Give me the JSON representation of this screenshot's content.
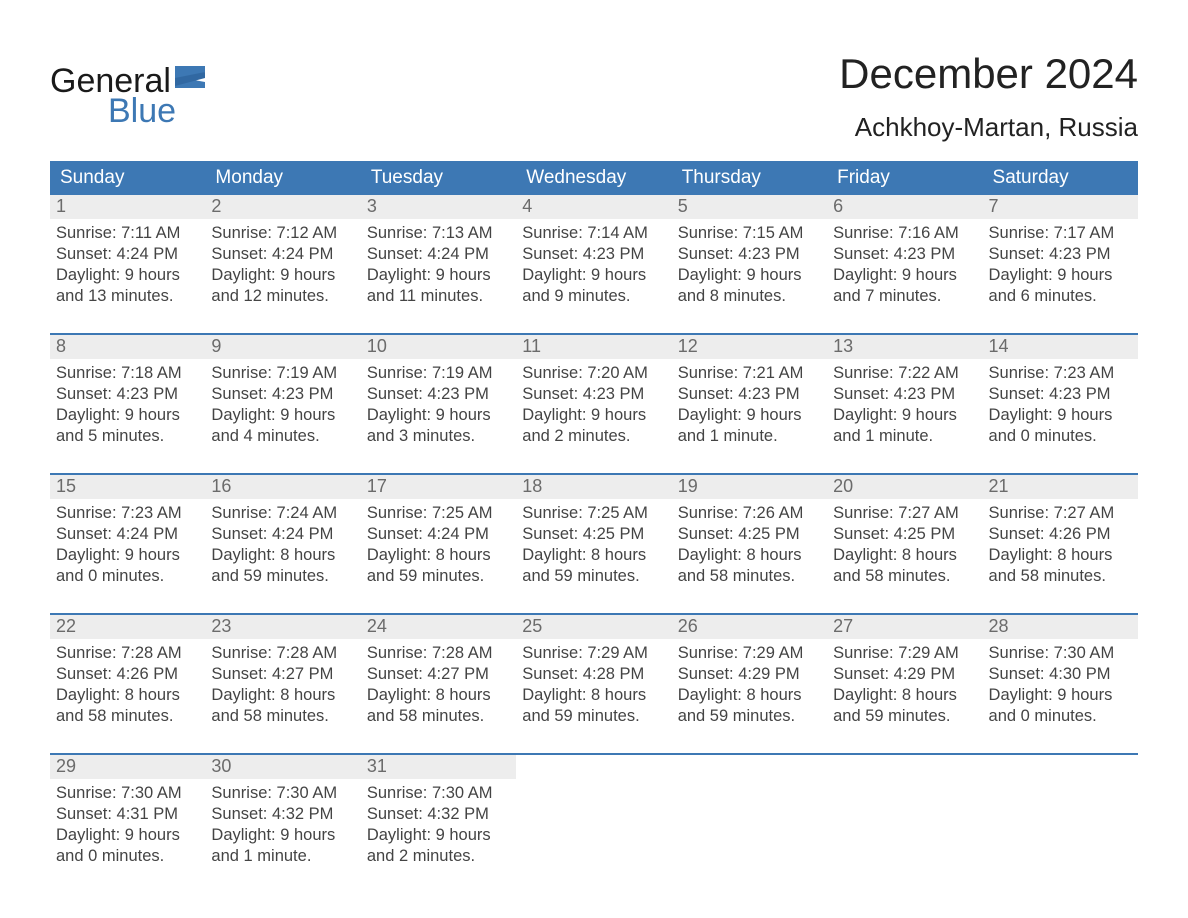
{
  "logo": {
    "line1": "General",
    "line2": "Blue"
  },
  "title": "December 2024",
  "location": "Achkhoy-Martan, Russia",
  "colors": {
    "header_blue": "#3d78b4",
    "daynum_bg": "#ededed",
    "logo_blue": "#3d78b4",
    "text": "#333333",
    "background": "#ffffff"
  },
  "daysOfWeek": [
    "Sunday",
    "Monday",
    "Tuesday",
    "Wednesday",
    "Thursday",
    "Friday",
    "Saturday"
  ],
  "weeks": [
    [
      {
        "n": "1",
        "sunrise": "Sunrise: 7:11 AM",
        "sunset": "Sunset: 4:24 PM",
        "day1": "Daylight: 9 hours",
        "day2": "and 13 minutes."
      },
      {
        "n": "2",
        "sunrise": "Sunrise: 7:12 AM",
        "sunset": "Sunset: 4:24 PM",
        "day1": "Daylight: 9 hours",
        "day2": "and 12 minutes."
      },
      {
        "n": "3",
        "sunrise": "Sunrise: 7:13 AM",
        "sunset": "Sunset: 4:24 PM",
        "day1": "Daylight: 9 hours",
        "day2": "and 11 minutes."
      },
      {
        "n": "4",
        "sunrise": "Sunrise: 7:14 AM",
        "sunset": "Sunset: 4:23 PM",
        "day1": "Daylight: 9 hours",
        "day2": "and 9 minutes."
      },
      {
        "n": "5",
        "sunrise": "Sunrise: 7:15 AM",
        "sunset": "Sunset: 4:23 PM",
        "day1": "Daylight: 9 hours",
        "day2": "and 8 minutes."
      },
      {
        "n": "6",
        "sunrise": "Sunrise: 7:16 AM",
        "sunset": "Sunset: 4:23 PM",
        "day1": "Daylight: 9 hours",
        "day2": "and 7 minutes."
      },
      {
        "n": "7",
        "sunrise": "Sunrise: 7:17 AM",
        "sunset": "Sunset: 4:23 PM",
        "day1": "Daylight: 9 hours",
        "day2": "and 6 minutes."
      }
    ],
    [
      {
        "n": "8",
        "sunrise": "Sunrise: 7:18 AM",
        "sunset": "Sunset: 4:23 PM",
        "day1": "Daylight: 9 hours",
        "day2": "and 5 minutes."
      },
      {
        "n": "9",
        "sunrise": "Sunrise: 7:19 AM",
        "sunset": "Sunset: 4:23 PM",
        "day1": "Daylight: 9 hours",
        "day2": "and 4 minutes."
      },
      {
        "n": "10",
        "sunrise": "Sunrise: 7:19 AM",
        "sunset": "Sunset: 4:23 PM",
        "day1": "Daylight: 9 hours",
        "day2": "and 3 minutes."
      },
      {
        "n": "11",
        "sunrise": "Sunrise: 7:20 AM",
        "sunset": "Sunset: 4:23 PM",
        "day1": "Daylight: 9 hours",
        "day2": "and 2 minutes."
      },
      {
        "n": "12",
        "sunrise": "Sunrise: 7:21 AM",
        "sunset": "Sunset: 4:23 PM",
        "day1": "Daylight: 9 hours",
        "day2": "and 1 minute."
      },
      {
        "n": "13",
        "sunrise": "Sunrise: 7:22 AM",
        "sunset": "Sunset: 4:23 PM",
        "day1": "Daylight: 9 hours",
        "day2": "and 1 minute."
      },
      {
        "n": "14",
        "sunrise": "Sunrise: 7:23 AM",
        "sunset": "Sunset: 4:23 PM",
        "day1": "Daylight: 9 hours",
        "day2": "and 0 minutes."
      }
    ],
    [
      {
        "n": "15",
        "sunrise": "Sunrise: 7:23 AM",
        "sunset": "Sunset: 4:24 PM",
        "day1": "Daylight: 9 hours",
        "day2": "and 0 minutes."
      },
      {
        "n": "16",
        "sunrise": "Sunrise: 7:24 AM",
        "sunset": "Sunset: 4:24 PM",
        "day1": "Daylight: 8 hours",
        "day2": "and 59 minutes."
      },
      {
        "n": "17",
        "sunrise": "Sunrise: 7:25 AM",
        "sunset": "Sunset: 4:24 PM",
        "day1": "Daylight: 8 hours",
        "day2": "and 59 minutes."
      },
      {
        "n": "18",
        "sunrise": "Sunrise: 7:25 AM",
        "sunset": "Sunset: 4:25 PM",
        "day1": "Daylight: 8 hours",
        "day2": "and 59 minutes."
      },
      {
        "n": "19",
        "sunrise": "Sunrise: 7:26 AM",
        "sunset": "Sunset: 4:25 PM",
        "day1": "Daylight: 8 hours",
        "day2": "and 58 minutes."
      },
      {
        "n": "20",
        "sunrise": "Sunrise: 7:27 AM",
        "sunset": "Sunset: 4:25 PM",
        "day1": "Daylight: 8 hours",
        "day2": "and 58 minutes."
      },
      {
        "n": "21",
        "sunrise": "Sunrise: 7:27 AM",
        "sunset": "Sunset: 4:26 PM",
        "day1": "Daylight: 8 hours",
        "day2": "and 58 minutes."
      }
    ],
    [
      {
        "n": "22",
        "sunrise": "Sunrise: 7:28 AM",
        "sunset": "Sunset: 4:26 PM",
        "day1": "Daylight: 8 hours",
        "day2": "and 58 minutes."
      },
      {
        "n": "23",
        "sunrise": "Sunrise: 7:28 AM",
        "sunset": "Sunset: 4:27 PM",
        "day1": "Daylight: 8 hours",
        "day2": "and 58 minutes."
      },
      {
        "n": "24",
        "sunrise": "Sunrise: 7:28 AM",
        "sunset": "Sunset: 4:27 PM",
        "day1": "Daylight: 8 hours",
        "day2": "and 58 minutes."
      },
      {
        "n": "25",
        "sunrise": "Sunrise: 7:29 AM",
        "sunset": "Sunset: 4:28 PM",
        "day1": "Daylight: 8 hours",
        "day2": "and 59 minutes."
      },
      {
        "n": "26",
        "sunrise": "Sunrise: 7:29 AM",
        "sunset": "Sunset: 4:29 PM",
        "day1": "Daylight: 8 hours",
        "day2": "and 59 minutes."
      },
      {
        "n": "27",
        "sunrise": "Sunrise: 7:29 AM",
        "sunset": "Sunset: 4:29 PM",
        "day1": "Daylight: 8 hours",
        "day2": "and 59 minutes."
      },
      {
        "n": "28",
        "sunrise": "Sunrise: 7:30 AM",
        "sunset": "Sunset: 4:30 PM",
        "day1": "Daylight: 9 hours",
        "day2": "and 0 minutes."
      }
    ],
    [
      {
        "n": "29",
        "sunrise": "Sunrise: 7:30 AM",
        "sunset": "Sunset: 4:31 PM",
        "day1": "Daylight: 9 hours",
        "day2": "and 0 minutes."
      },
      {
        "n": "30",
        "sunrise": "Sunrise: 7:30 AM",
        "sunset": "Sunset: 4:32 PM",
        "day1": "Daylight: 9 hours",
        "day2": "and 1 minute."
      },
      {
        "n": "31",
        "sunrise": "Sunrise: 7:30 AM",
        "sunset": "Sunset: 4:32 PM",
        "day1": "Daylight: 9 hours",
        "day2": "and 2 minutes."
      },
      null,
      null,
      null,
      null
    ]
  ]
}
